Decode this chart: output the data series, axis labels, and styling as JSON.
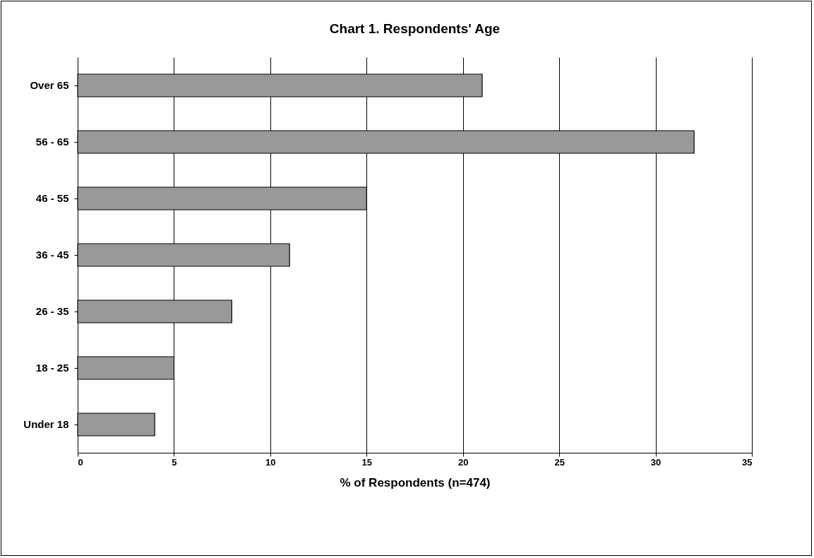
{
  "chart_data": {
    "type": "bar",
    "orientation": "horizontal",
    "title": "Chart 1.  Respondents' Age",
    "xlabel": "% of Respondents (n=474)",
    "categories": [
      "Over 65",
      "56 - 65",
      "46 - 55",
      "36 - 45",
      "26 - 35",
      "18 - 25",
      "Under 18"
    ],
    "values": [
      21,
      32,
      15,
      11,
      8,
      5,
      4
    ],
    "color": "#999999",
    "xlim": [
      0,
      35
    ],
    "xticks": [
      0,
      5,
      10,
      15,
      20,
      25,
      30,
      35
    ],
    "grid": "x"
  }
}
